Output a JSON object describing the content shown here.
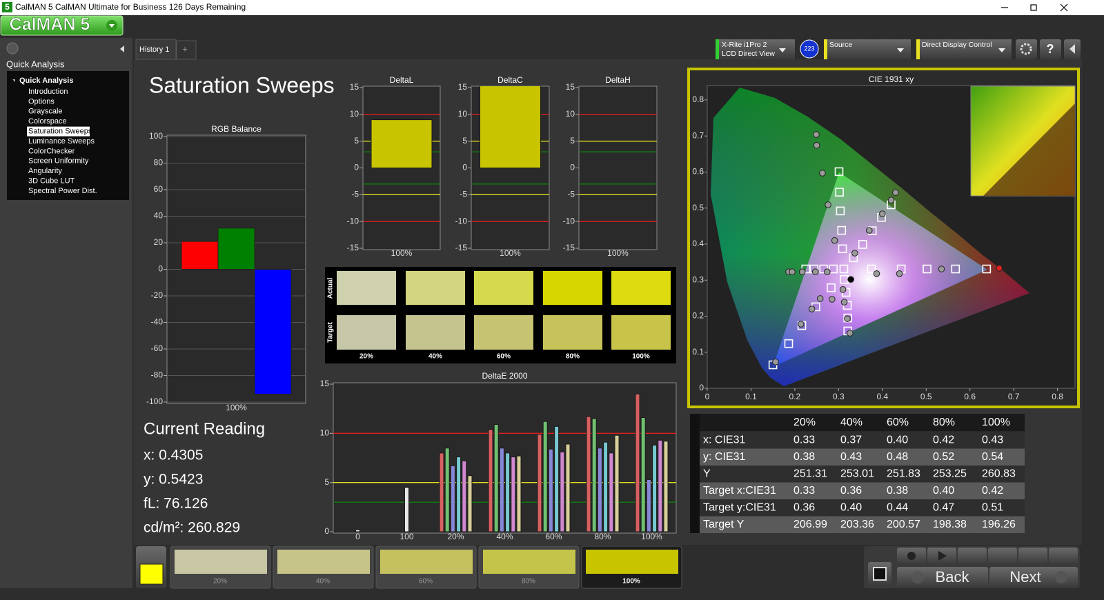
{
  "window": {
    "icon": "5",
    "title": "CalMAN 5 CalMAN Ultimate for Business 126 Days Remaining",
    "logo": "CalMAN 5"
  },
  "sidebar": {
    "heading": "Quick Analysis",
    "tree_root": "Quick Analysis",
    "items": [
      "Introduction",
      "Options",
      "Grayscale",
      "Colorspace",
      "Saturation Sweeps",
      "Luminance Sweeps",
      "ColorChecker",
      "Screen Uniformity",
      "Angularity",
      "3D Cube LUT",
      "Spectral Power Dist."
    ],
    "selected": 4
  },
  "tabs": {
    "items": [
      "History 1"
    ],
    "add": "+"
  },
  "toolbar": {
    "meter": [
      "X-Rite i1Pro 2",
      "LCD Direct View"
    ],
    "meter_badge": "223",
    "source": "Source",
    "display": "Direct Display Control",
    "help": "?"
  },
  "page_title": "Saturation Sweeps",
  "chart_data": [
    {
      "type": "bar",
      "title": "RGB Balance",
      "categories": [
        "100%"
      ],
      "series": [
        {
          "color": "#ff0000",
          "values": [
            21
          ]
        },
        {
          "color": "#008000",
          "values": [
            31
          ]
        },
        {
          "color": "#0000ff",
          "values": [
            -94
          ]
        }
      ],
      "ylim": [
        -100,
        100
      ],
      "yticks": [
        -100,
        -80,
        -60,
        -40,
        -20,
        0,
        20,
        40,
        60,
        80,
        100
      ],
      "grid": true
    },
    {
      "type": "bar",
      "title": "DeltaL",
      "categories": [
        "100%"
      ],
      "series": [
        {
          "color": "#c8c400",
          "values": [
            9
          ]
        }
      ],
      "ylim": [
        -15,
        15
      ],
      "yticks": [
        -15,
        -10,
        -5,
        0,
        5,
        10,
        15
      ],
      "grid": false,
      "reference_lines": [
        {
          "value": 10,
          "color": "#e02020"
        },
        {
          "value": -10,
          "color": "#e02020"
        },
        {
          "value": 5,
          "color": "#e0e020"
        },
        {
          "value": -5,
          "color": "#e0e020"
        },
        {
          "value": 3,
          "color": "#108010"
        },
        {
          "value": -3,
          "color": "#108010"
        }
      ]
    },
    {
      "type": "bar",
      "title": "DeltaC",
      "categories": [
        "100%"
      ],
      "series": [
        {
          "color": "#c8c400",
          "values": [
            16
          ]
        }
      ],
      "ylim": [
        -15,
        15
      ],
      "yticks": [
        -15,
        -10,
        -5,
        0,
        5,
        10,
        15
      ],
      "grid": false,
      "reference_lines": [
        {
          "value": 10,
          "color": "#e02020"
        },
        {
          "value": -10,
          "color": "#e02020"
        },
        {
          "value": 5,
          "color": "#e0e020"
        },
        {
          "value": -5,
          "color": "#e0e020"
        },
        {
          "value": 3,
          "color": "#108010"
        },
        {
          "value": -3,
          "color": "#108010"
        }
      ]
    },
    {
      "type": "bar",
      "title": "DeltaH",
      "categories": [
        "100%"
      ],
      "series": [
        {
          "color": "#c8c400",
          "values": [
            0
          ]
        }
      ],
      "ylim": [
        -15,
        15
      ],
      "yticks": [
        -15,
        -10,
        -5,
        0,
        5,
        10,
        15
      ],
      "grid": false,
      "reference_lines": [
        {
          "value": 10,
          "color": "#e02020"
        },
        {
          "value": -10,
          "color": "#e02020"
        },
        {
          "value": 5,
          "color": "#e0e020"
        },
        {
          "value": -5,
          "color": "#e0e020"
        },
        {
          "value": 3,
          "color": "#108010"
        },
        {
          "value": -3,
          "color": "#108010"
        }
      ]
    },
    {
      "type": "bar",
      "title": "DeltaE 2000",
      "categories": [
        "0",
        "100",
        "20%",
        "40%",
        "60%",
        "80%",
        "100%"
      ],
      "series": [
        {
          "color": "#e8e8e8",
          "values": [
            0.2,
            4.5,
            null,
            null,
            null,
            null,
            null
          ]
        },
        {
          "color": "#d86060",
          "values": [
            null,
            null,
            8.0,
            10.4,
            9.9,
            11.7,
            14.0
          ]
        },
        {
          "color": "#70c070",
          "values": [
            null,
            null,
            8.5,
            10.9,
            11.2,
            11.5,
            11.6
          ]
        },
        {
          "color": "#8888d8",
          "values": [
            null,
            null,
            6.7,
            8.5,
            8.4,
            8.5,
            5.3
          ]
        },
        {
          "color": "#78c8d0",
          "values": [
            null,
            null,
            7.6,
            8.0,
            10.7,
            9.1,
            8.8
          ]
        },
        {
          "color": "#d088d0",
          "values": [
            null,
            null,
            7.2,
            7.6,
            8.1,
            8.0,
            9.3
          ]
        },
        {
          "color": "#d8d098",
          "values": [
            null,
            null,
            5.7,
            7.7,
            8.9,
            9.8,
            9.2
          ]
        }
      ],
      "ylim": [
        0,
        15
      ],
      "yticks": [
        0,
        5,
        10,
        15
      ],
      "grid": false,
      "reference_lines": [
        {
          "value": 10,
          "color": "#e02020"
        },
        {
          "value": 5,
          "color": "#e0e020"
        },
        {
          "value": 3,
          "color": "#108010"
        }
      ]
    },
    {
      "type": "scatter",
      "title": "CIE 1931 xy",
      "xlim": [
        0,
        0.84
      ],
      "ylim": [
        0,
        0.84
      ],
      "xticks": [
        0,
        0.1,
        0.2,
        0.3,
        0.4,
        0.5,
        0.6,
        0.7,
        0.8
      ],
      "yticks": [
        0,
        0.1,
        0.2,
        0.3,
        0.4,
        0.5,
        0.6,
        0.7,
        0.8
      ],
      "series": [
        {
          "marker": "square",
          "color": "#ffffff",
          "x": [
            0.312,
            0.375,
            0.443,
            0.502,
            0.567,
            0.638,
            0.301,
            0.302,
            0.304,
            0.307,
            0.309,
            0.283,
            0.248,
            0.216,
            0.186,
            0.15,
            0.288,
            0.266,
            0.244,
            0.225,
            0.313,
            0.317,
            0.32,
            0.321,
            0.321,
            0.334,
            0.355,
            0.377,
            0.398,
            0.42
          ],
          "y": [
            0.331,
            0.331,
            0.331,
            0.331,
            0.331,
            0.331,
            0.601,
            0.544,
            0.492,
            0.438,
            0.387,
            0.279,
            0.226,
            0.174,
            0.124,
            0.065,
            0.331,
            0.331,
            0.331,
            0.331,
            0.302,
            0.266,
            0.23,
            0.195,
            0.159,
            0.362,
            0.399,
            0.437,
            0.474,
            0.509
          ]
        },
        {
          "marker": "circle",
          "color": "#9a9a9a",
          "x": [
            0.387,
            0.439,
            0.535,
            0.249,
            0.25,
            0.263,
            0.276,
            0.291,
            0.285,
            0.258,
            0.239,
            0.214,
            0.156,
            0.186,
            0.194,
            0.217,
            0.247,
            0.274,
            0.31,
            0.313,
            0.32,
            0.326,
            0.337,
            0.37,
            0.4,
            0.42,
            0.43
          ],
          "y": [
            0.318,
            0.318,
            0.331,
            0.704,
            0.674,
            0.597,
            0.509,
            0.41,
            0.247,
            0.249,
            0.22,
            0.178,
            0.073,
            0.323,
            0.323,
            0.323,
            0.323,
            0.323,
            0.274,
            0.239,
            0.193,
            0.153,
            0.375,
            0.438,
            0.484,
            0.522,
            0.543
          ]
        },
        {
          "marker": "circle",
          "color": "#e02020",
          "x": [
            0.667
          ],
          "y": [
            0.333
          ]
        },
        {
          "marker": "circle",
          "color": "#000000",
          "x": [
            0.328
          ],
          "y": [
            0.302
          ]
        }
      ]
    }
  ],
  "swatches": {
    "actual_label": "Actual",
    "target_label": "Target",
    "columns": [
      "20%",
      "40%",
      "60%",
      "80%",
      "100%"
    ],
    "actual_colors": [
      "#cfd1ad",
      "#d3d57f",
      "#d6d84d",
      "#d8d600",
      "#dcdc10"
    ],
    "target_colors": [
      "#c6c6a8",
      "#c5c38e",
      "#c6c372",
      "#c7c35a",
      "#c8c44a"
    ]
  },
  "current_reading": {
    "title": "Current Reading",
    "lines": [
      "x: 0.4305",
      "y: 0.5423",
      "fL: 76.126",
      "cd/m²: 260.829"
    ]
  },
  "table": {
    "columns": [
      "20%",
      "40%",
      "60%",
      "80%",
      "100%"
    ],
    "rows": [
      {
        "label": "x: CIE31",
        "cells": [
          "0.33",
          "0.37",
          "0.40",
          "0.42",
          "0.43"
        ]
      },
      {
        "label": "y: CIE31",
        "cells": [
          "0.38",
          "0.43",
          "0.48",
          "0.52",
          "0.54"
        ]
      },
      {
        "label": "Y",
        "cells": [
          "251.31",
          "253.01",
          "251.83",
          "253.25",
          "260.83"
        ]
      },
      {
        "label": "Target x:CIE31",
        "cells": [
          "0.33",
          "0.36",
          "0.38",
          "0.40",
          "0.42"
        ]
      },
      {
        "label": "Target y:CIE31",
        "cells": [
          "0.36",
          "0.40",
          "0.44",
          "0.47",
          "0.51"
        ]
      },
      {
        "label": "Target Y",
        "cells": [
          "206.99",
          "203.36",
          "200.57",
          "198.38",
          "196.26"
        ]
      }
    ]
  },
  "footer": {
    "indicator_color": "#ffff00",
    "thumbnails": [
      {
        "label": "20%",
        "color": "#c9c6a3"
      },
      {
        "label": "40%",
        "color": "#c6c489"
      },
      {
        "label": "60%",
        "color": "#c6c15f"
      },
      {
        "label": "80%",
        "color": "#c4c44a"
      },
      {
        "label": "100%",
        "color": "#c8c400"
      }
    ],
    "selected": 4,
    "back": "Back",
    "next": "Next"
  }
}
